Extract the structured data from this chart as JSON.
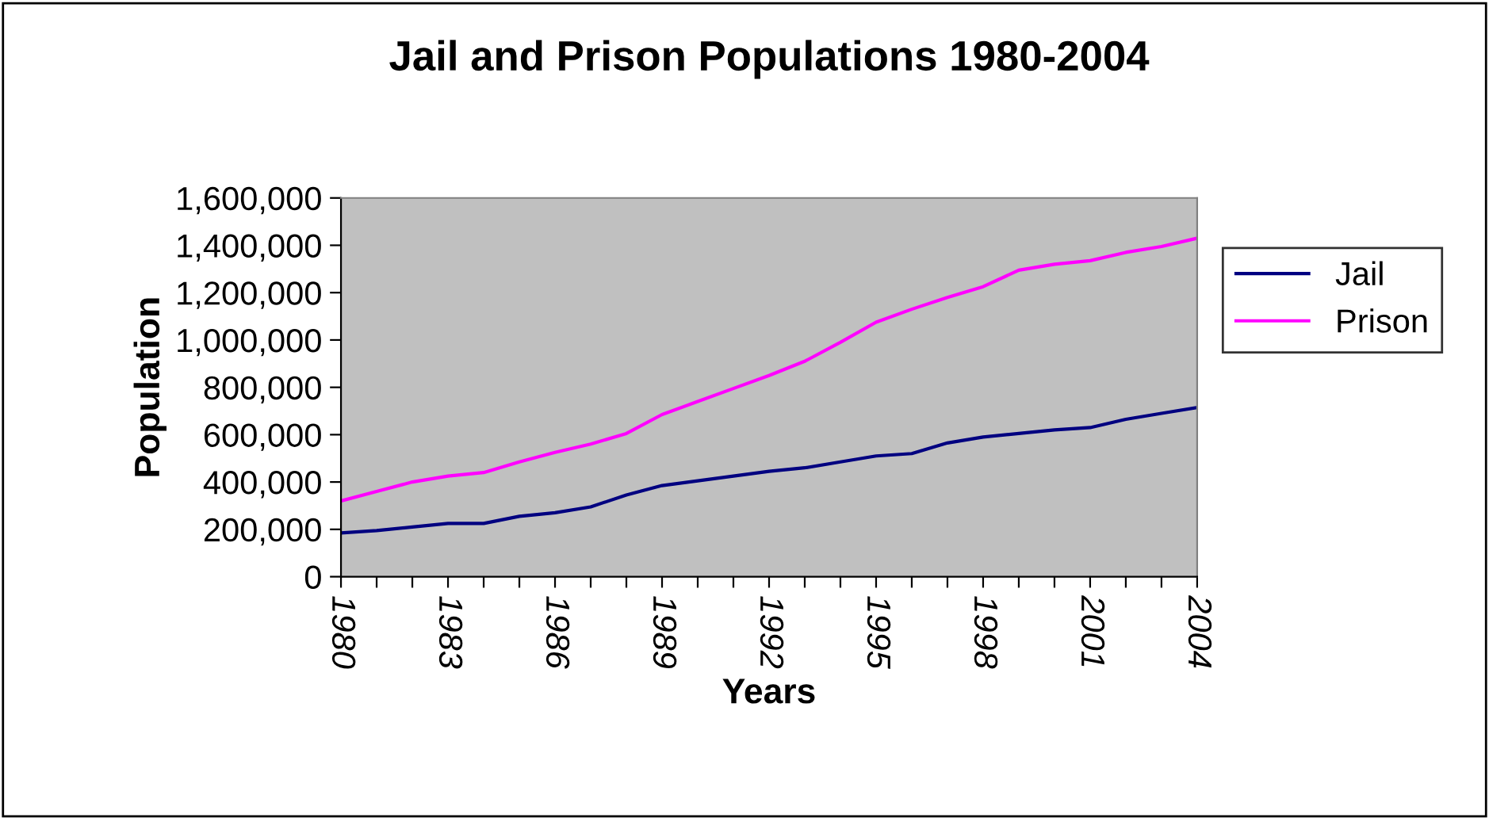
{
  "chart_data": {
    "type": "line",
    "title": "Jail and Prison Populations 1980-2004",
    "xlabel": "Years",
    "ylabel": "Population",
    "x": [
      1980,
      1981,
      1982,
      1983,
      1984,
      1985,
      1986,
      1987,
      1988,
      1989,
      1990,
      1991,
      1992,
      1993,
      1994,
      1995,
      1996,
      1997,
      1998,
      1999,
      2000,
      2001,
      2002,
      2003,
      2004
    ],
    "series": [
      {
        "name": "Jail",
        "color": "#000080",
        "values": [
          185000,
          195000,
          210000,
          225000,
          225000,
          255000,
          270000,
          295000,
          345000,
          385000,
          405000,
          425000,
          445000,
          460000,
          485000,
          510000,
          520000,
          565000,
          590000,
          605000,
          620000,
          630000,
          665000,
          690000,
          715000
        ]
      },
      {
        "name": "Prison",
        "color": "#ff00ff",
        "values": [
          320000,
          360000,
          400000,
          425000,
          440000,
          485000,
          525000,
          560000,
          605000,
          685000,
          740000,
          795000,
          850000,
          910000,
          990000,
          1075000,
          1130000,
          1180000,
          1225000,
          1295000,
          1320000,
          1335000,
          1370000,
          1395000,
          1430000
        ]
      }
    ],
    "xlim": [
      1980,
      2004
    ],
    "xticks": [
      1980,
      {
        "value": 1981,
        "label": null
      },
      {
        "value": 1982,
        "label": null
      },
      1983,
      {
        "value": 1984,
        "label": null
      },
      {
        "value": 1985,
        "label": null
      },
      1986,
      {
        "value": 1987,
        "label": null
      },
      {
        "value": 1988,
        "label": null
      },
      1989,
      {
        "value": 1990,
        "label": null
      },
      {
        "value": 1991,
        "label": null
      },
      1992,
      {
        "value": 1993,
        "label": null
      },
      {
        "value": 1994,
        "label": null
      },
      1995,
      {
        "value": 1996,
        "label": null
      },
      {
        "value": 1997,
        "label": null
      },
      1998,
      {
        "value": 1999,
        "label": null
      },
      {
        "value": 2000,
        "label": null
      },
      2001,
      {
        "value": 2002,
        "label": null
      },
      {
        "value": 2003,
        "label": null
      },
      2004
    ],
    "ylim": [
      0,
      1600000
    ],
    "yticks": [
      0,
      {
        "value": 200000,
        "label": "200,000"
      },
      {
        "value": 400000,
        "label": "400,000"
      },
      {
        "value": 600000,
        "label": "600,000"
      },
      {
        "value": 800000,
        "label": "800,000"
      },
      {
        "value": 1000000,
        "label": "1,000,000"
      },
      {
        "value": 1200000,
        "label": "1,200,000"
      },
      {
        "value": 1400000,
        "label": "1,400,000"
      },
      {
        "value": 1600000,
        "label": "1,600,000"
      }
    ],
    "grid": false,
    "legend": "right",
    "marker": "none",
    "line_style": "solid"
  }
}
